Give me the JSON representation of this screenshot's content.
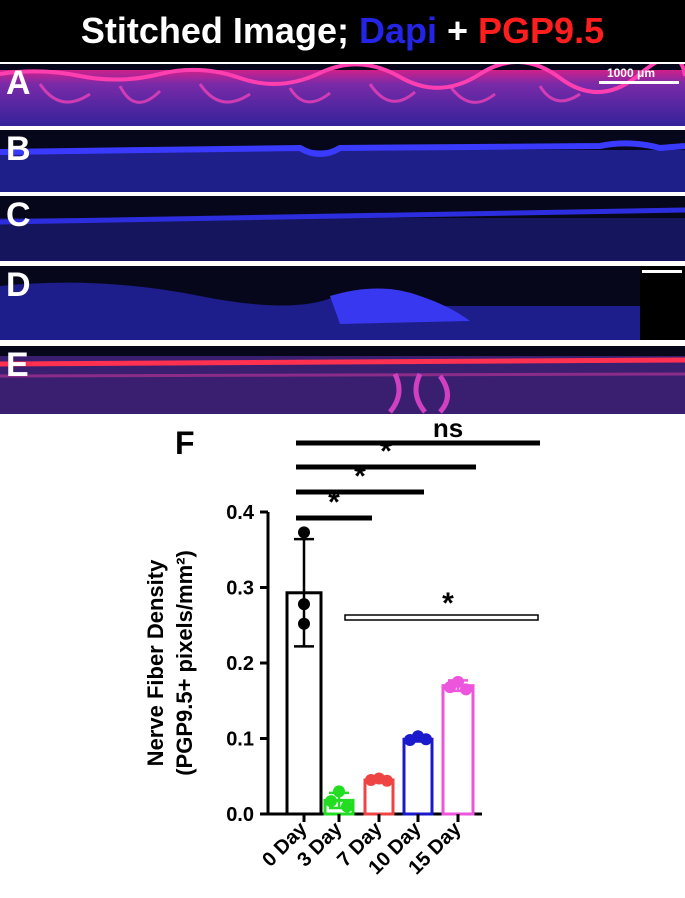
{
  "banner": {
    "part1": "Stitched Image; ",
    "part2": "Dapi",
    "part3": " + ",
    "part4": "PGP9.5",
    "color_dapi": "#2424e6",
    "color_pgp": "#ff1e1e"
  },
  "panels": [
    {
      "label": "A"
    },
    {
      "label": "B"
    },
    {
      "label": "C"
    },
    {
      "label": "D"
    },
    {
      "label": "E"
    }
  ],
  "scale_bar": "1000 μm",
  "panel_f_label": "F",
  "chart_data": {
    "type": "bar",
    "ylabel_line1": "Nerve Fiber Density",
    "ylabel_line2": "(PGP9.5+ pixels/mm²)",
    "ylim": [
      0,
      0.4
    ],
    "yticks": [
      "0.0",
      "0.1",
      "0.2",
      "0.3",
      "0.4"
    ],
    "categories": [
      "0 Day",
      "3 Day",
      "7 Day",
      "10 Day",
      "15 Day"
    ],
    "values": [
      0.293,
      0.018,
      0.045,
      0.099,
      0.17
    ],
    "errors": [
      0.071,
      0.01,
      0.003,
      0.003,
      0.007
    ],
    "colors": [
      "#000000",
      "#22dd22",
      "#ee4444",
      "#1a1acc",
      "#ee55dd"
    ],
    "points": [
      [
        0.373,
        0.278,
        0.252
      ],
      [
        0.03,
        0.017,
        0.01
      ],
      [
        0.047,
        0.045,
        0.044
      ],
      [
        0.103,
        0.098,
        0.099
      ],
      [
        0.175,
        0.168,
        0.165
      ]
    ],
    "significance": [
      {
        "from": 0,
        "to": 4,
        "label": "ns"
      },
      {
        "from": 0,
        "to": 3,
        "label": "*"
      },
      {
        "from": 0,
        "to": 2,
        "label": "*"
      },
      {
        "from": 0,
        "to": 1,
        "label": "*"
      },
      {
        "from": 1,
        "to": 4,
        "label": "*"
      }
    ]
  }
}
